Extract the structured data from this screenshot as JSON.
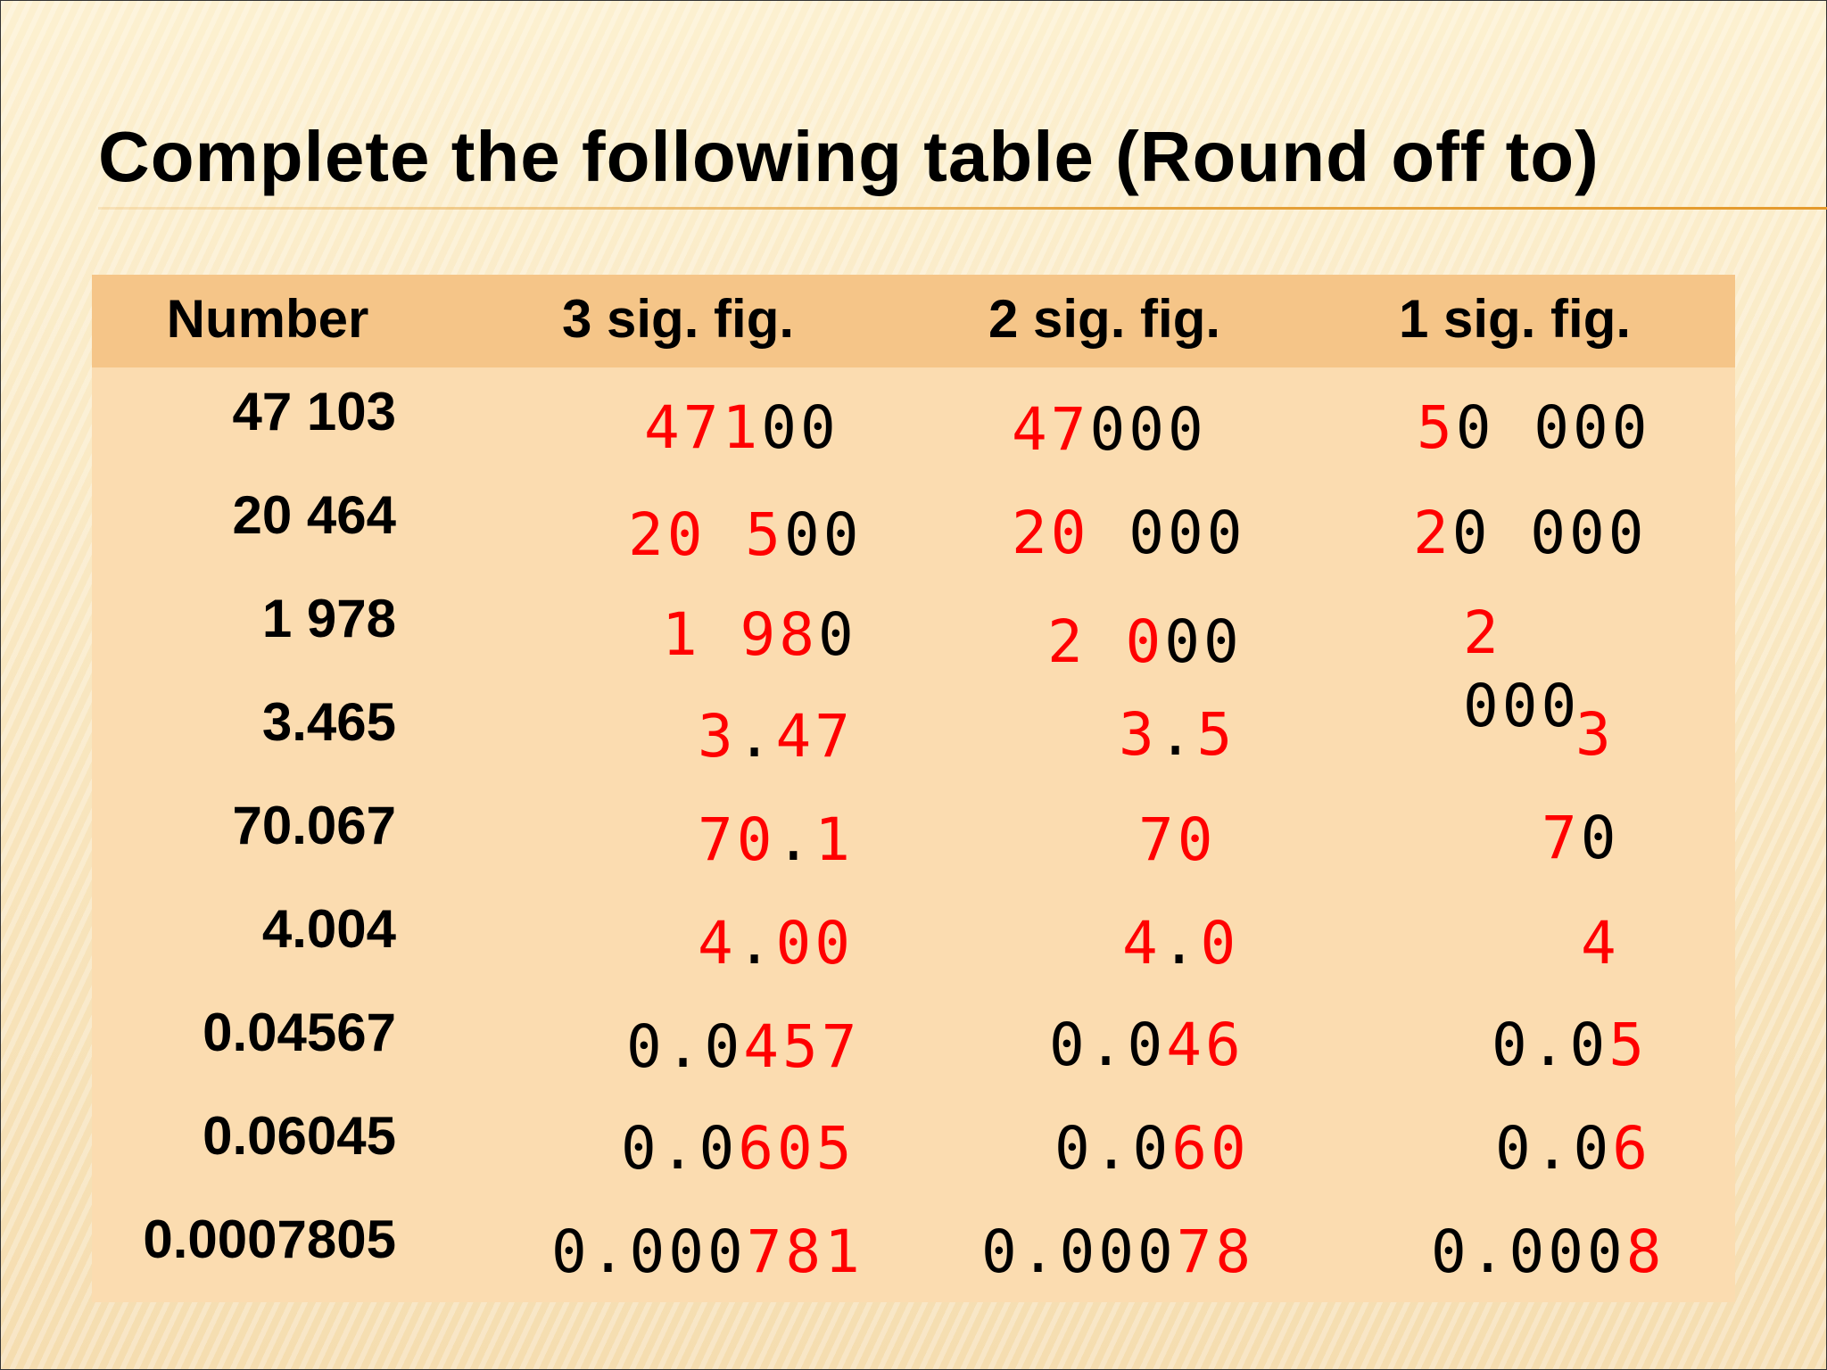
{
  "title": "Complete the following table  (Round off to)",
  "headers": [
    "Number",
    "3 sig. fig.",
    "2 sig. fig.",
    "1 sig. fig."
  ],
  "colors": {
    "answer_highlight": "#ff0000",
    "header_band": "#f5c588",
    "table_body": "#fbdcb0"
  },
  "rows": [
    {
      "number": "47 103",
      "sig3": {
        "red": "471",
        "black": "00"
      },
      "sig2": {
        "red": "47",
        "black": "000"
      },
      "sig1": {
        "red": "5",
        "black": "0 000"
      }
    },
    {
      "number": "20 464",
      "sig3": {
        "red": "20 5",
        "black": "00"
      },
      "sig2": {
        "red": "20",
        "black": " 000"
      },
      "sig1": {
        "red": "2",
        "black": "0 000"
      }
    },
    {
      "number": "1 978",
      "sig3": {
        "red": "1 98",
        "black": "0"
      },
      "sig2": {
        "red": "2 0",
        "black": "00"
      },
      "sig1": {
        "red": "2",
        "black": "000"
      }
    },
    {
      "number": "3.465",
      "sig3": {
        "red_a": "3",
        "black": ".",
        "red_b": "47"
      },
      "sig2": {
        "red_a": "3",
        "black": ".",
        "red_b": "5"
      },
      "sig1": {
        "red": "3"
      }
    },
    {
      "number": "70.067",
      "sig3": {
        "red_a": "70",
        "black": ".",
        "red_b": "1"
      },
      "sig2": {
        "red": "70"
      },
      "sig1": {
        "red": "7",
        "black": "0"
      }
    },
    {
      "number": "4.004",
      "sig3": {
        "red_a": "4",
        "black": ".",
        "red_b": "00"
      },
      "sig2": {
        "red_a": "4",
        "black": ".",
        "red_b": "0"
      },
      "sig1": {
        "red": "4"
      }
    },
    {
      "number": "0.04567",
      "sig3": {
        "black": "0.0",
        "red": "457"
      },
      "sig2": {
        "black": "0.0",
        "red": "46"
      },
      "sig1": {
        "black": "0.0",
        "red": "5"
      }
    },
    {
      "number": "0.06045",
      "sig3": {
        "black": "0.0",
        "red": "605"
      },
      "sig2": {
        "black": "0.0",
        "red": "60"
      },
      "sig1": {
        "black": "0.0",
        "red": "6"
      }
    },
    {
      "number": "0.0007805",
      "sig3": {
        "black": "0.000",
        "red": "781"
      },
      "sig2": {
        "black": "0.000",
        "red": "78"
      },
      "sig1": {
        "black": "0.000",
        "red": "8"
      }
    }
  ]
}
